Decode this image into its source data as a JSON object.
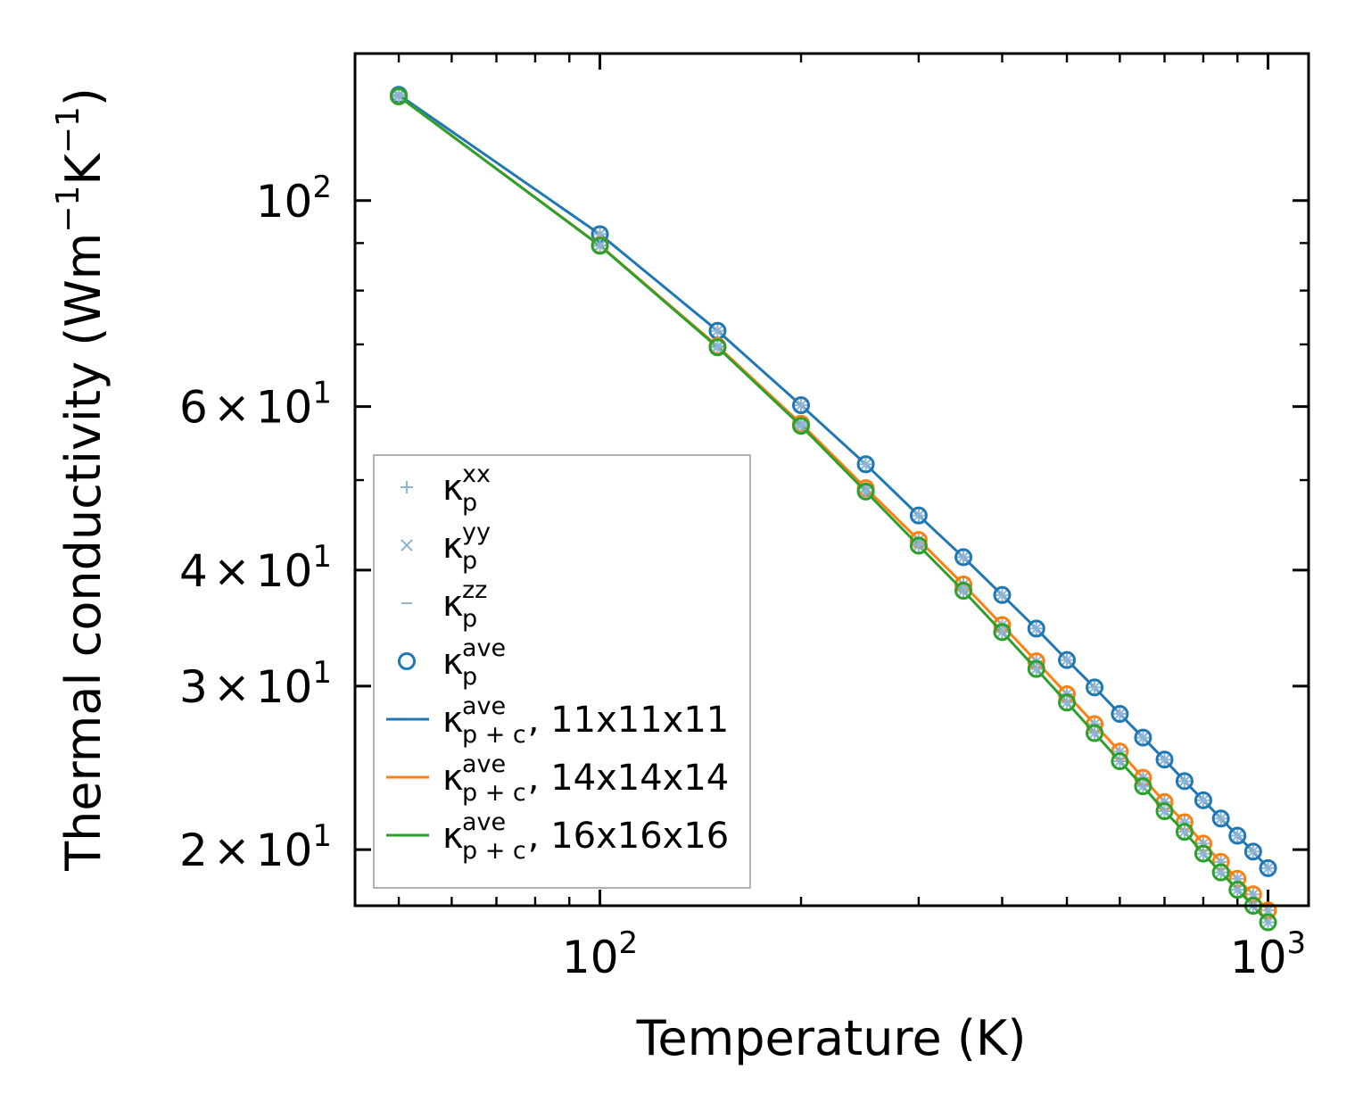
{
  "chart_data": {
    "type": "line",
    "xlabel": "Temperature (K)",
    "ylabel_main": "Thermal conductivity (Wm",
    "ylabel_sup1": "−1",
    "ylabel_mid": "K",
    "ylabel_sup2": "−1",
    "ylabel_end": ")",
    "x_scale": "log",
    "y_scale": "log",
    "xlim": [
      43,
      1150
    ],
    "ylim": [
      17.4,
      144
    ],
    "grid": false,
    "legend_position": "lower-left",
    "x_ticks": [
      {
        "value": 100,
        "base": "10",
        "exp": "2"
      },
      {
        "value": 1000,
        "base": "10",
        "exp": "3"
      }
    ],
    "y_ticks": [
      {
        "value": 20,
        "mant": "2",
        "sep": "×",
        "base": "10",
        "exp": "1"
      },
      {
        "value": 30,
        "mant": "3",
        "sep": "×",
        "base": "10",
        "exp": "1"
      },
      {
        "value": 40,
        "mant": "4",
        "sep": "×",
        "base": "10",
        "exp": "1"
      },
      {
        "value": 60,
        "mant": "6",
        "sep": "×",
        "base": "10",
        "exp": "1"
      },
      {
        "value": 100,
        "mant": "",
        "sep": "",
        "base": "10",
        "exp": "2"
      }
    ],
    "x": [
      50,
      100,
      150,
      200,
      250,
      300,
      350,
      400,
      450,
      500,
      550,
      600,
      650,
      700,
      750,
      800,
      850,
      900,
      950,
      1000
    ],
    "series": [
      {
        "name": "11x11x11",
        "color": "#1f77b4",
        "values": [
          130.0,
          92.0,
          72.4,
          60.2,
          52.0,
          45.8,
          41.3,
          37.6,
          34.6,
          32.0,
          29.9,
          28.0,
          26.4,
          25.0,
          23.7,
          22.6,
          21.6,
          20.7,
          19.9,
          19.1
        ]
      },
      {
        "name": "14x14x14",
        "color": "#ff7f0e",
        "values": [
          129.5,
          89.5,
          69.7,
          57.5,
          49.0,
          43.1,
          38.6,
          34.9,
          31.9,
          29.4,
          27.3,
          25.5,
          23.9,
          22.5,
          21.4,
          20.3,
          19.4,
          18.6,
          17.9,
          17.2
        ]
      },
      {
        "name": "16x16x16",
        "color": "#2ca02c",
        "values": [
          129.5,
          89.4,
          69.5,
          57.2,
          48.6,
          42.5,
          38.0,
          34.3,
          31.3,
          28.8,
          26.7,
          24.9,
          23.4,
          22.0,
          20.9,
          19.8,
          18.9,
          18.1,
          17.4,
          16.7
        ]
      }
    ],
    "legend": [
      {
        "marker": "+",
        "sym": "κ",
        "sub": "p",
        "sup": "xx",
        "suffix": ""
      },
      {
        "marker": "×",
        "sym": "κ",
        "sub": "p",
        "sup": "yy",
        "suffix": ""
      },
      {
        "marker": "–",
        "sym": "κ",
        "sub": "p",
        "sup": "zz",
        "suffix": ""
      },
      {
        "marker": "circle",
        "sym": "κ",
        "sub": "p",
        "sup": "ave",
        "suffix": ""
      },
      {
        "marker": "line",
        "sym": "κ",
        "sub": "p + c",
        "sup": "ave",
        "suffix": ", 11x11x11"
      },
      {
        "marker": "line",
        "sym": "κ",
        "sub": "p + c",
        "sup": "ave",
        "suffix": ", 14x14x14"
      },
      {
        "marker": "line",
        "sym": "κ",
        "sub": "p + c",
        "sup": "ave",
        "suffix": ", 16x16x16"
      }
    ],
    "colors": {
      "marker_light": "#8fb4d4",
      "circle_xyz": "#1f77b4",
      "axis": "#000000",
      "legend_frame": "#999999"
    }
  }
}
